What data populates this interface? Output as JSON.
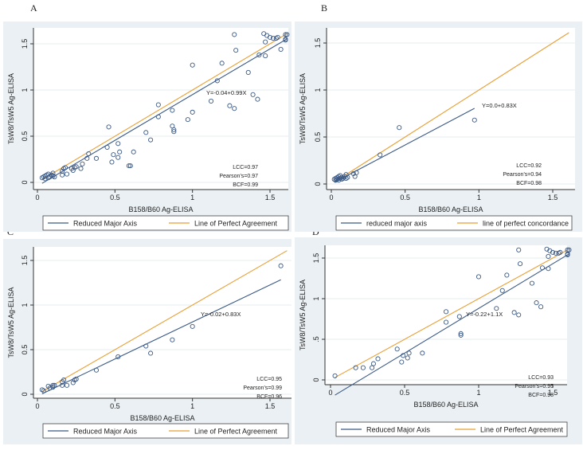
{
  "colors": {
    "rma": "#3b5a86",
    "agreement": "#e8a035",
    "points": "#3b5a86",
    "background": "#eaf0f3"
  },
  "chart_data": [
    {
      "panel": "A",
      "type": "scatter",
      "xlabel": "B158/B60 Ag-ELISA",
      "ylabel": "TsW8/TsW5 Ag-ELISA",
      "xticks": [
        "0",
        "0.5",
        "1",
        "1.5"
      ],
      "yticks": [
        "0",
        "0.5",
        "1",
        "1.5"
      ],
      "xlim": [
        0,
        1.62
      ],
      "ylim": [
        -0.03,
        1.65
      ],
      "equation": "Y=-0.04+0.99X",
      "stats": [
        "LCC=0.97",
        "Pearson's=0.97",
        "BCF=0.99"
      ],
      "legend": [
        "Reduced Major Axis",
        "Line of Perfect Agreement"
      ],
      "rma": {
        "intercept": -0.04,
        "slope": 0.99,
        "x": [
          0.03,
          1.61
        ]
      },
      "agreement_x": [
        0.03,
        1.61
      ],
      "points": [
        [
          0.03,
          0.05
        ],
        [
          0.04,
          0.06
        ],
        [
          0.05,
          0.04
        ],
        [
          0.05,
          0.07
        ],
        [
          0.06,
          0.08
        ],
        [
          0.07,
          0.05
        ],
        [
          0.07,
          0.09
        ],
        [
          0.08,
          0.06
        ],
        [
          0.09,
          0.08
        ],
        [
          0.1,
          0.07
        ],
        [
          0.1,
          0.1
        ],
        [
          0.11,
          0.06
        ],
        [
          0.16,
          0.08
        ],
        [
          0.16,
          0.12
        ],
        [
          0.17,
          0.15
        ],
        [
          0.18,
          0.16
        ],
        [
          0.19,
          0.09
        ],
        [
          0.22,
          0.15
        ],
        [
          0.23,
          0.13
        ],
        [
          0.24,
          0.16
        ],
        [
          0.25,
          0.17
        ],
        [
          0.28,
          0.15
        ],
        [
          0.29,
          0.2
        ],
        [
          0.32,
          0.26
        ],
        [
          0.33,
          0.31
        ],
        [
          0.38,
          0.26
        ],
        [
          0.45,
          0.38
        ],
        [
          0.46,
          0.6
        ],
        [
          0.48,
          0.22
        ],
        [
          0.49,
          0.3
        ],
        [
          0.52,
          0.27
        ],
        [
          0.52,
          0.42
        ],
        [
          0.53,
          0.33
        ],
        [
          0.59,
          0.18
        ],
        [
          0.6,
          0.18
        ],
        [
          0.62,
          0.33
        ],
        [
          0.7,
          0.54
        ],
        [
          0.73,
          0.46
        ],
        [
          0.78,
          0.71
        ],
        [
          0.78,
          0.84
        ],
        [
          0.87,
          0.61
        ],
        [
          0.87,
          0.78
        ],
        [
          0.88,
          0.57
        ],
        [
          0.88,
          0.55
        ],
        [
          0.97,
          0.68
        ],
        [
          1.0,
          0.76
        ],
        [
          1.0,
          1.27
        ],
        [
          1.12,
          0.88
        ],
        [
          1.16,
          1.1
        ],
        [
          1.19,
          1.29
        ],
        [
          1.24,
          0.83
        ],
        [
          1.27,
          0.8
        ],
        [
          1.27,
          1.6
        ],
        [
          1.28,
          1.43
        ],
        [
          1.36,
          1.19
        ],
        [
          1.39,
          0.95
        ],
        [
          1.42,
          0.9
        ],
        [
          1.43,
          1.38
        ],
        [
          1.46,
          1.61
        ],
        [
          1.47,
          1.52
        ],
        [
          1.47,
          1.37
        ],
        [
          1.48,
          1.59
        ],
        [
          1.5,
          1.57
        ],
        [
          1.52,
          1.56
        ],
        [
          1.54,
          1.56
        ],
        [
          1.55,
          1.57
        ],
        [
          1.57,
          1.44
        ],
        [
          1.6,
          1.6
        ],
        [
          1.6,
          1.55
        ],
        [
          1.6,
          1.54
        ],
        [
          1.61,
          1.6
        ]
      ]
    },
    {
      "panel": "B",
      "type": "scatter",
      "xlabel": "B158/B60 Ag-ELISA",
      "ylabel": "TsW8/TsW5 Ag-ELISA",
      "xticks": [
        "0",
        "0.5",
        "1",
        "1.5"
      ],
      "yticks": [
        "0",
        "0.5",
        "1",
        "1.5"
      ],
      "xlim": [
        0,
        1.62
      ],
      "ylim": [
        -0.03,
        1.65
      ],
      "equation": "Y=0.0+0.83X",
      "stats": [
        "LCC=0.92",
        "Pearson's=0.94",
        "BCF=0.98"
      ],
      "legend": [
        "reduced major axis",
        "line of perfect concordance"
      ],
      "rma": {
        "intercept": 0.0,
        "slope": 0.83,
        "x": [
          0.02,
          0.97
        ]
      },
      "agreement_x": [
        0.02,
        1.61
      ],
      "points": [
        [
          0.02,
          0.05
        ],
        [
          0.03,
          0.04
        ],
        [
          0.03,
          0.06
        ],
        [
          0.04,
          0.05
        ],
        [
          0.04,
          0.07
        ],
        [
          0.05,
          0.04
        ],
        [
          0.05,
          0.08
        ],
        [
          0.06,
          0.06
        ],
        [
          0.06,
          0.09
        ],
        [
          0.07,
          0.05
        ],
        [
          0.07,
          0.07
        ],
        [
          0.08,
          0.06
        ],
        [
          0.09,
          0.08
        ],
        [
          0.1,
          0.1
        ],
        [
          0.1,
          0.06
        ],
        [
          0.11,
          0.07
        ],
        [
          0.15,
          0.11
        ],
        [
          0.16,
          0.08
        ],
        [
          0.17,
          0.12
        ],
        [
          0.33,
          0.31
        ],
        [
          0.46,
          0.6
        ],
        [
          0.97,
          0.68
        ]
      ]
    },
    {
      "panel": "C",
      "type": "scatter",
      "xlabel": "B158/B60 Ag-ELISA",
      "ylabel": "TsW8/TsW5 Ag-ELISA",
      "xticks": [
        "0",
        "0.5",
        "1",
        "1.5"
      ],
      "yticks": [
        "0",
        "0.5",
        "1",
        "1.5"
      ],
      "xlim": [
        0,
        1.62
      ],
      "ylim": [
        -0.03,
        1.65
      ],
      "equation": "Y=-0.02+0.83X",
      "stats": [
        "LCC=0.95",
        "Pearson's=0.99",
        "BCF=0.96"
      ],
      "legend": [
        "Reduced Major Axis",
        "Line of Perfect Agreement"
      ],
      "rma": {
        "intercept": -0.02,
        "slope": 0.83,
        "x": [
          0.03,
          1.57
        ]
      },
      "agreement_x": [
        0.03,
        1.61
      ],
      "points": [
        [
          0.03,
          0.05
        ],
        [
          0.04,
          0.04
        ],
        [
          0.07,
          0.09
        ],
        [
          0.08,
          0.07
        ],
        [
          0.1,
          0.08
        ],
        [
          0.1,
          0.1
        ],
        [
          0.11,
          0.1
        ],
        [
          0.16,
          0.1
        ],
        [
          0.16,
          0.14
        ],
        [
          0.17,
          0.16
        ],
        [
          0.19,
          0.1
        ],
        [
          0.23,
          0.13
        ],
        [
          0.24,
          0.16
        ],
        [
          0.25,
          0.17
        ],
        [
          0.38,
          0.27
        ],
        [
          0.52,
          0.42
        ],
        [
          0.7,
          0.54
        ],
        [
          0.73,
          0.46
        ],
        [
          0.87,
          0.61
        ],
        [
          1.0,
          0.76
        ],
        [
          1.57,
          1.44
        ]
      ]
    },
    {
      "panel": "D",
      "type": "scatter",
      "xlabel": "B158/B60 Ag-ELISA",
      "ylabel": "TsW8/TsW5 Ag-ELISA",
      "xticks": [
        "0",
        "0.5",
        "1",
        "1.5"
      ],
      "yticks": [
        "0",
        ".5",
        "1",
        "1.5"
      ],
      "xlim": [
        0,
        1.62
      ],
      "ylim": [
        -0.24,
        1.65
      ],
      "equation": "Y=-0.22+1.1X",
      "stats": [
        "LCC=0.93",
        "Pearson's=0.95",
        "BCF=0.98"
      ],
      "legend": [
        "Reduced Major Axis",
        "Line of Perfect Agreement"
      ],
      "rma": {
        "intercept": -0.22,
        "slope": 1.1,
        "x": [
          0.03,
          1.61
        ]
      },
      "agreement_x": [
        0.03,
        1.61
      ],
      "points": [
        [
          0.03,
          0.05
        ],
        [
          0.17,
          0.15
        ],
        [
          0.22,
          0.15
        ],
        [
          0.28,
          0.15
        ],
        [
          0.29,
          0.2
        ],
        [
          0.32,
          0.26
        ],
        [
          0.45,
          0.38
        ],
        [
          0.48,
          0.22
        ],
        [
          0.49,
          0.3
        ],
        [
          0.52,
          0.27
        ],
        [
          0.53,
          0.33
        ],
        [
          0.62,
          0.33
        ],
        [
          0.78,
          0.71
        ],
        [
          0.78,
          0.84
        ],
        [
          0.87,
          0.78
        ],
        [
          0.88,
          0.57
        ],
        [
          0.88,
          0.55
        ],
        [
          1.0,
          1.27
        ],
        [
          1.12,
          0.88
        ],
        [
          1.16,
          1.1
        ],
        [
          1.19,
          1.29
        ],
        [
          1.24,
          0.83
        ],
        [
          1.27,
          0.8
        ],
        [
          1.27,
          1.6
        ],
        [
          1.28,
          1.43
        ],
        [
          1.36,
          1.19
        ],
        [
          1.39,
          0.95
        ],
        [
          1.42,
          0.9
        ],
        [
          1.43,
          1.38
        ],
        [
          1.46,
          1.61
        ],
        [
          1.47,
          1.52
        ],
        [
          1.47,
          1.37
        ],
        [
          1.48,
          1.59
        ],
        [
          1.5,
          1.57
        ],
        [
          1.52,
          1.56
        ],
        [
          1.54,
          1.56
        ],
        [
          1.55,
          1.57
        ],
        [
          1.6,
          1.6
        ],
        [
          1.6,
          1.55
        ],
        [
          1.6,
          1.54
        ],
        [
          1.61,
          1.6
        ]
      ]
    }
  ]
}
